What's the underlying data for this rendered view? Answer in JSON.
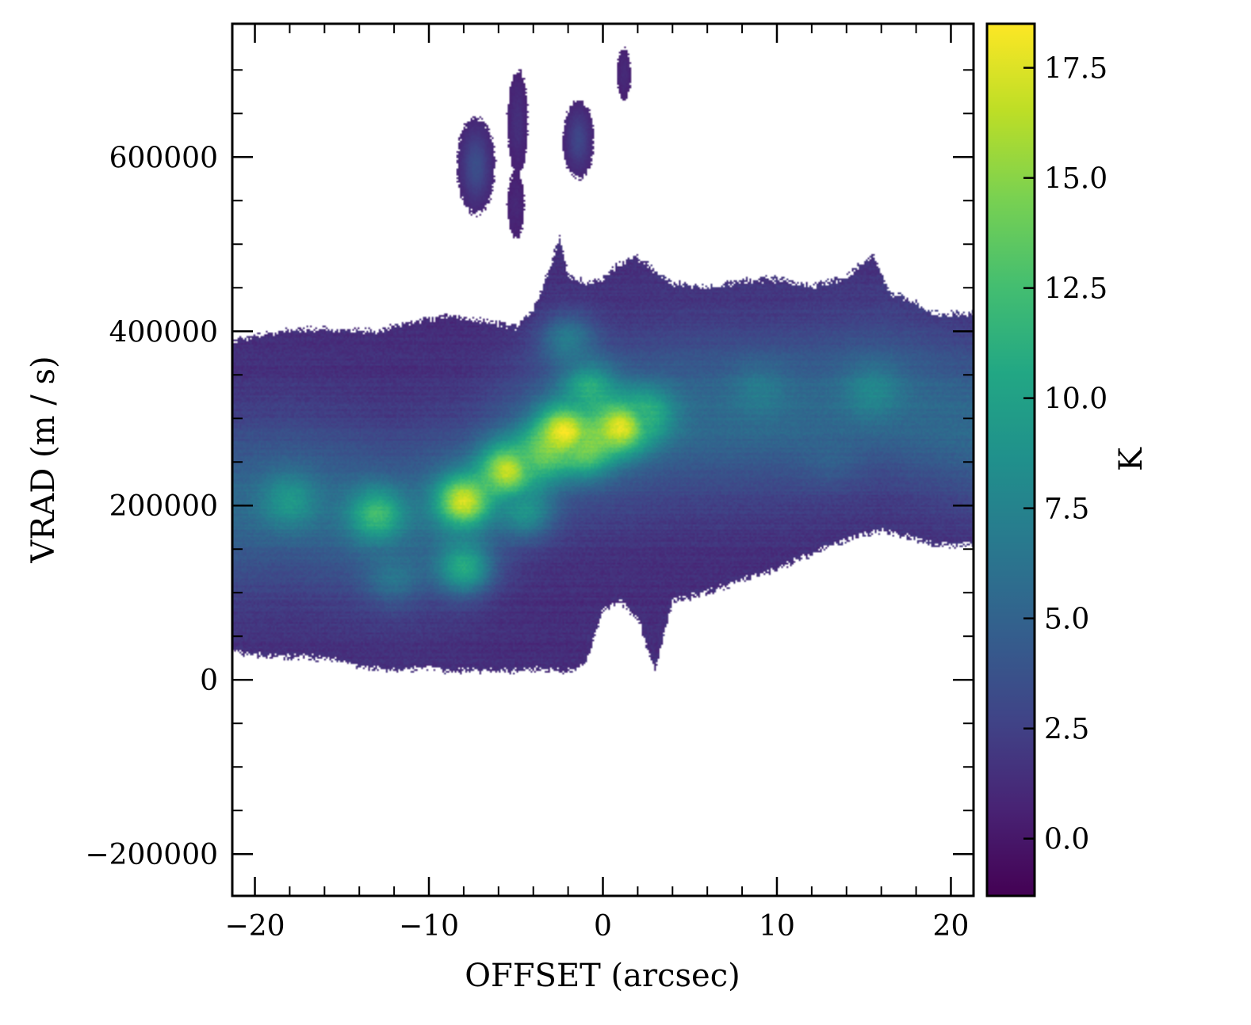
{
  "chart_data": {
    "type": "heatmap",
    "title": "",
    "xlabel": "OFFSET (arcsec)",
    "ylabel": "VRAD (m / s)",
    "xlim": [
      -21.3,
      21.3
    ],
    "ylim": [
      -248000,
      753000
    ],
    "x_ticks": [
      -20,
      -10,
      0,
      10,
      20
    ],
    "x_tick_labels": [
      "−20",
      "−10",
      "0",
      "10",
      "20"
    ],
    "y_ticks": [
      -200000,
      0,
      200000,
      400000,
      600000
    ],
    "y_tick_labels": [
      "−200000",
      "0",
      "200000",
      "400000",
      "600000"
    ],
    "colormap": "viridis",
    "colorbar": {
      "label": "K",
      "min": -1.3,
      "max": 18.5,
      "ticks": [
        0.0,
        2.5,
        5.0,
        7.5,
        10.0,
        12.5,
        15.0,
        17.5
      ],
      "tick_labels": [
        "0.0",
        "2.5",
        "5.0",
        "7.5",
        "10.0",
        "12.5",
        "15.0",
        "17.5"
      ]
    },
    "masked_color": "#ffffff",
    "grid": false,
    "emission_region": {
      "upper_edge": [
        [
          -21,
          390000
        ],
        [
          -19,
          398000
        ],
        [
          -17,
          403000
        ],
        [
          -15,
          402000
        ],
        [
          -13,
          400000
        ],
        [
          -11,
          410000
        ],
        [
          -9,
          418000
        ],
        [
          -7,
          412000
        ],
        [
          -5,
          406000
        ],
        [
          -4,
          425000
        ],
        [
          -3,
          475000
        ],
        [
          -2.5,
          510000
        ],
        [
          -2,
          465000
        ],
        [
          -1,
          455000
        ],
        [
          0,
          462000
        ],
        [
          1,
          478000
        ],
        [
          2,
          485000
        ],
        [
          3,
          470000
        ],
        [
          4,
          455000
        ],
        [
          6,
          450000
        ],
        [
          8,
          458000
        ],
        [
          10,
          460000
        ],
        [
          12,
          452000
        ],
        [
          14,
          462000
        ],
        [
          15.5,
          488000
        ],
        [
          16.5,
          445000
        ],
        [
          18,
          432000
        ],
        [
          19,
          420000
        ],
        [
          21,
          420000
        ]
      ],
      "lower_edge": [
        [
          -21,
          32000
        ],
        [
          -19,
          26000
        ],
        [
          -17,
          26000
        ],
        [
          -15,
          22000
        ],
        [
          -14,
          15000
        ],
        [
          -12,
          10000
        ],
        [
          -10,
          15000
        ],
        [
          -9,
          10000
        ],
        [
          -7,
          10000
        ],
        [
          -5.5,
          10000
        ],
        [
          -4,
          12000
        ],
        [
          -2,
          10000
        ],
        [
          -1,
          18000
        ],
        [
          0,
          80000
        ],
        [
          1,
          90000
        ],
        [
          2,
          70000
        ],
        [
          3,
          10000
        ],
        [
          4,
          90000
        ],
        [
          6,
          100000
        ],
        [
          8,
          115000
        ],
        [
          10,
          128000
        ],
        [
          12,
          145000
        ],
        [
          14,
          160000
        ],
        [
          16,
          172000
        ],
        [
          18,
          162000
        ],
        [
          19,
          155000
        ],
        [
          21,
          155000
        ]
      ],
      "ridge": [
        [
          -21,
          200000
        ],
        [
          -18,
          205000
        ],
        [
          -15,
          195000
        ],
        [
          -12,
          185000
        ],
        [
          -10,
          195000
        ],
        [
          -8,
          205000
        ],
        [
          -6,
          238000
        ],
        [
          -4,
          265000
        ],
        [
          -2,
          282000
        ],
        [
          0,
          288000
        ],
        [
          2,
          295000
        ],
        [
          4,
          302000
        ],
        [
          8,
          305000
        ],
        [
          12,
          310000
        ],
        [
          16,
          320000
        ],
        [
          21,
          295000
        ]
      ],
      "background_level": 1.3,
      "peaks": [
        {
          "x": -18,
          "y": 205000,
          "value": 9.5
        },
        {
          "x": -13,
          "y": 190000,
          "value": 12.5
        },
        {
          "x": -12,
          "y": 120000,
          "value": 6.5
        },
        {
          "x": -8,
          "y": 205000,
          "value": 17.5
        },
        {
          "x": -8,
          "y": 130000,
          "value": 11.0
        },
        {
          "x": -5.5,
          "y": 240000,
          "value": 17.0
        },
        {
          "x": -4.5,
          "y": 195000,
          "value": 9.0
        },
        {
          "x": -3.5,
          "y": 258000,
          "value": 13.0
        },
        {
          "x": -2.2,
          "y": 285000,
          "value": 18.3
        },
        {
          "x": -1,
          "y": 265000,
          "value": 14.0
        },
        {
          "x": -0.8,
          "y": 335000,
          "value": 11.0
        },
        {
          "x": 1,
          "y": 290000,
          "value": 17.8
        },
        {
          "x": 2.5,
          "y": 305000,
          "value": 11.5
        },
        {
          "x": -2,
          "y": 390000,
          "value": 7.0
        },
        {
          "x": 9,
          "y": 330000,
          "value": 7.0
        },
        {
          "x": 15.5,
          "y": 330000,
          "value": 8.0
        },
        {
          "x": 13,
          "y": 260000,
          "value": 5.0
        }
      ],
      "upper_clumps": [
        {
          "x": -7.3,
          "y": 590000,
          "dx": 1.1,
          "dy": 55000,
          "value": 3.5
        },
        {
          "x": -4.9,
          "y": 640000,
          "dx": 0.6,
          "dy": 60000,
          "value": 1.5
        },
        {
          "x": -1.4,
          "y": 620000,
          "dx": 0.9,
          "dy": 45000,
          "value": 3.0
        },
        {
          "x": 1.2,
          "y": 695000,
          "dx": 0.4,
          "dy": 30000,
          "value": 1.2
        },
        {
          "x": -5.0,
          "y": 545000,
          "dx": 0.5,
          "dy": 38000,
          "value": 1.0
        }
      ]
    }
  }
}
